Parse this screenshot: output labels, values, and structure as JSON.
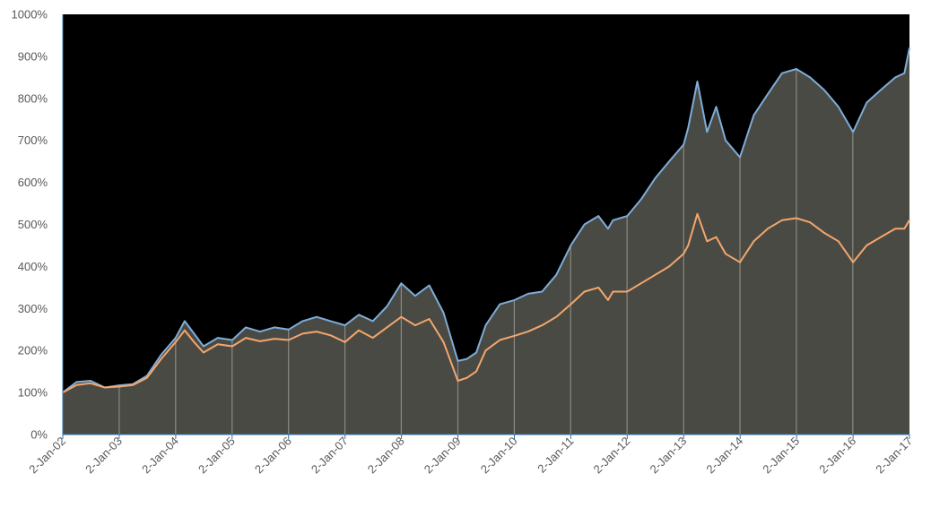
{
  "chart_data": {
    "type": "area",
    "title": "",
    "xlabel": "",
    "ylabel": "",
    "ylim": [
      0,
      1000
    ],
    "y_tick_labels": [
      "0%",
      "100%",
      "200%",
      "300%",
      "400%",
      "500%",
      "600%",
      "700%",
      "800%",
      "900%",
      "1000%"
    ],
    "x_tick_labels": [
      "2-Jan-02",
      "2-Jan-03",
      "2-Jan-04",
      "2-Jan-05",
      "2-Jan-06",
      "2-Jan-07",
      "2-Jan-08",
      "2-Jan-09",
      "2-Jan-10",
      "2-Jan-11",
      "2-Jan-12",
      "2-Jan-13",
      "2-Jan-14",
      "2-Jan-15",
      "2-Jan-16",
      "2-Jan-17"
    ],
    "x": [
      "2002-01-02",
      "2002-04-01",
      "2002-07-01",
      "2002-10-01",
      "2003-01-02",
      "2003-04-01",
      "2003-07-01",
      "2003-10-01",
      "2004-01-02",
      "2004-03-01",
      "2004-05-01",
      "2004-07-01",
      "2004-10-01",
      "2005-01-03",
      "2005-04-01",
      "2005-07-01",
      "2005-10-03",
      "2006-01-03",
      "2006-04-03",
      "2006-07-03",
      "2006-10-02",
      "2007-01-02",
      "2007-04-02",
      "2007-07-02",
      "2007-10-01",
      "2008-01-02",
      "2008-04-01",
      "2008-07-01",
      "2008-10-01",
      "2009-01-02",
      "2009-03-02",
      "2009-05-01",
      "2009-07-01",
      "2009-10-01",
      "2010-01-04",
      "2010-04-01",
      "2010-07-01",
      "2010-10-01",
      "2011-01-03",
      "2011-04-01",
      "2011-07-01",
      "2011-09-01",
      "2011-10-03",
      "2012-01-03",
      "2012-04-02",
      "2012-07-02",
      "2012-10-01",
      "2013-01-02",
      "2013-02-01",
      "2013-04-01",
      "2013-06-03",
      "2013-08-01",
      "2013-10-01",
      "2014-01-02",
      "2014-04-01",
      "2014-07-01",
      "2014-10-01",
      "2015-01-02",
      "2015-04-01",
      "2015-07-01",
      "2015-10-01",
      "2016-01-04",
      "2016-04-01",
      "2016-07-01",
      "2016-10-03",
      "2016-12-01",
      "2017-01-03"
    ],
    "series": [
      {
        "name": "",
        "color": "#7EADD8",
        "values": [
          100,
          125,
          128,
          112,
          117,
          120,
          140,
          190,
          230,
          270,
          240,
          210,
          230,
          225,
          255,
          245,
          255,
          250,
          270,
          280,
          270,
          260,
          285,
          270,
          305,
          360,
          330,
          355,
          290,
          175,
          180,
          195,
          260,
          310,
          320,
          335,
          340,
          380,
          450,
          500,
          520,
          490,
          510,
          520,
          560,
          610,
          650,
          690,
          730,
          840,
          720,
          780,
          700,
          660,
          760,
          810,
          860,
          870,
          850,
          820,
          780,
          720,
          790,
          820,
          850,
          860,
          920
        ]
      },
      {
        "name": "",
        "color": "#F4A66D",
        "values": [
          100,
          118,
          122,
          112,
          114,
          118,
          135,
          180,
          220,
          248,
          220,
          195,
          215,
          210,
          230,
          222,
          228,
          225,
          240,
          245,
          236,
          220,
          248,
          230,
          255,
          280,
          260,
          275,
          220,
          128,
          135,
          150,
          200,
          225,
          235,
          245,
          260,
          280,
          310,
          340,
          350,
          320,
          340,
          340,
          360,
          380,
          400,
          430,
          450,
          525,
          460,
          470,
          430,
          410,
          460,
          490,
          510,
          515,
          505,
          480,
          460,
          410,
          450,
          470,
          490,
          490,
          510
        ]
      }
    ],
    "area_fill": "#4A4A44",
    "plot_background": "#000000",
    "year_markers": true,
    "grid": false,
    "legend": "none"
  }
}
